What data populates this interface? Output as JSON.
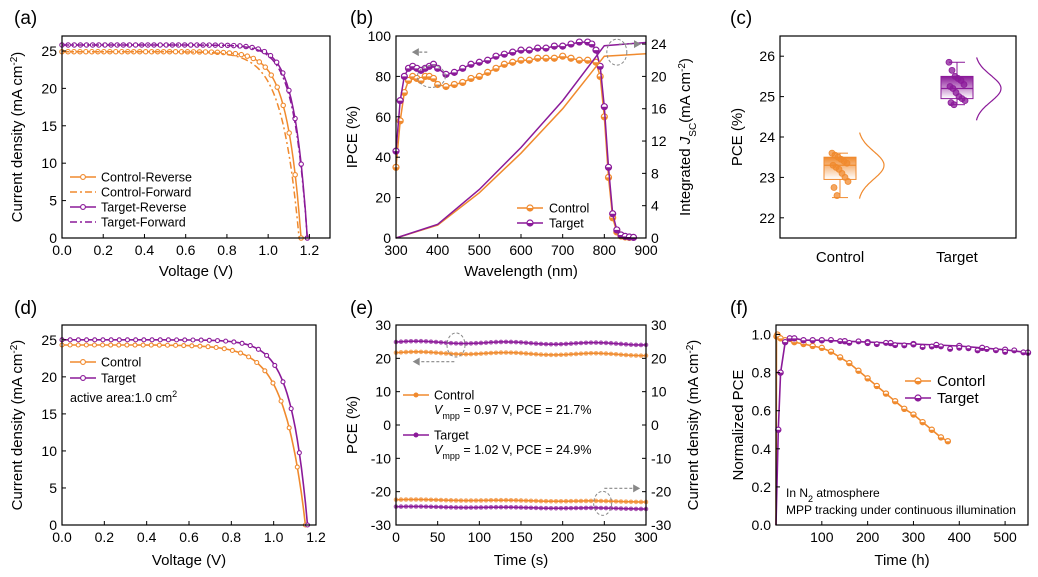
{
  "colors": {
    "control": "#F08A2E",
    "target": "#8B1A99",
    "axis": "#000000",
    "arrow": "#888888"
  },
  "chart_data": [
    {
      "panel": "(a)",
      "type": "line",
      "xlabel": "Voltage (V)",
      "ylabel_main": "Current density (mA cm",
      "ylabel_sup": "-2",
      "ylabel_close": ")",
      "xlim": [
        0,
        1.3
      ],
      "ylim": [
        0,
        27
      ],
      "xticks": [
        "0.0",
        "0.2",
        "0.4",
        "0.6",
        "0.8",
        "1.0",
        "1.2"
      ],
      "yticks": [
        "0",
        "5",
        "10",
        "15",
        "20",
        "25"
      ],
      "series": [
        {
          "name": "Control-Reverse",
          "color": "#F08A2E",
          "dash": "solid",
          "marker": true,
          "jsc": 24.9,
          "voc": 1.16,
          "n": 1.7
        },
        {
          "name": "Control-Forward",
          "color": "#F08A2E",
          "dash": "dashdot",
          "marker": false,
          "jsc": 24.9,
          "voc": 1.15,
          "n": 2.0
        },
        {
          "name": "Target-Reverse",
          "color": "#8B1A99",
          "dash": "solid",
          "marker": true,
          "jsc": 25.8,
          "voc": 1.19,
          "n": 1.5
        },
        {
          "name": "Target-Forward",
          "color": "#8B1A99",
          "dash": "dashdot",
          "marker": false,
          "jsc": 25.8,
          "voc": 1.19,
          "n": 1.6
        }
      ]
    },
    {
      "panel": "(b)",
      "type": "line",
      "xlabel": "Wavelength (nm)",
      "ylabel": "IPCE (%)",
      "y2label_main": "Integrated ",
      "y2label_it": "J",
      "y2label_sub": "SC",
      "y2label_unit": "(mA cm",
      "y2label_sup": "-2",
      "y2label_close": ")",
      "xlim": [
        300,
        900
      ],
      "ylim": [
        0,
        100
      ],
      "y2lim": [
        0,
        25
      ],
      "xticks": [
        "300",
        "400",
        "500",
        "600",
        "700",
        "800",
        "900"
      ],
      "yticks": [
        "0",
        "20",
        "40",
        "60",
        "80",
        "100"
      ],
      "y2ticks": [
        "0",
        "4",
        "8",
        "12",
        "16",
        "20",
        "24"
      ],
      "ipce": [
        {
          "name": "Control",
          "color": "#F08A2E",
          "x": [
            300,
            310,
            320,
            330,
            340,
            350,
            360,
            370,
            380,
            390,
            400,
            420,
            440,
            460,
            480,
            500,
            520,
            540,
            560,
            580,
            600,
            620,
            640,
            660,
            680,
            700,
            720,
            740,
            760,
            780,
            790,
            800,
            810,
            820,
            830,
            840,
            850,
            860
          ],
          "y": [
            35,
            58,
            72,
            78,
            80,
            79,
            78,
            80,
            80,
            79,
            76,
            75,
            76,
            77,
            79,
            80,
            82,
            84,
            86,
            87,
            88,
            88,
            89,
            89,
            89,
            90,
            89,
            88,
            88,
            87,
            80,
            60,
            30,
            10,
            3,
            1,
            0.5,
            0.3
          ]
        },
        {
          "name": "Target",
          "color": "#8B1A99",
          "x": [
            300,
            310,
            320,
            330,
            340,
            350,
            360,
            370,
            380,
            390,
            400,
            420,
            440,
            460,
            480,
            500,
            520,
            540,
            560,
            580,
            600,
            620,
            640,
            660,
            680,
            700,
            720,
            740,
            760,
            770,
            780,
            790,
            800,
            810,
            820,
            830,
            840,
            850,
            860,
            870
          ],
          "y": [
            43,
            68,
            80,
            84,
            85,
            84,
            83,
            84,
            85,
            86,
            84,
            81,
            82,
            84,
            86,
            87,
            88,
            90,
            91,
            92,
            93,
            93,
            94,
            94,
            95,
            95,
            96,
            97,
            97,
            96,
            93,
            85,
            65,
            35,
            12,
            4,
            1.5,
            0.8,
            0.5,
            0.3
          ]
        }
      ],
      "jsc": [
        {
          "name": "Control",
          "color": "#F08A2E",
          "x": [
            300,
            400,
            500,
            600,
            700,
            800,
            900
          ],
          "y": [
            0,
            1.6,
            5.6,
            10.5,
            16.0,
            22.5,
            22.8
          ]
        },
        {
          "name": "Target",
          "color": "#8B1A99",
          "x": [
            300,
            400,
            500,
            600,
            700,
            800,
            900
          ],
          "y": [
            0,
            1.7,
            6.0,
            11.2,
            17.0,
            23.8,
            24.2
          ]
        }
      ]
    },
    {
      "panel": "(c)",
      "type": "box",
      "ylabel": "PCE (%)",
      "ylim": [
        21.5,
        26.5
      ],
      "yticks": [
        "22",
        "23",
        "24",
        "25",
        "26"
      ],
      "categories": [
        "Control",
        "Target"
      ],
      "boxes": [
        {
          "name": "Control",
          "color": "#F08A2E",
          "q1": 22.95,
          "median": 23.3,
          "q3": 23.5,
          "min": 22.5,
          "max": 23.6,
          "points": [
            23.6,
            23.55,
            23.5,
            23.45,
            23.4,
            23.35,
            23.3,
            23.25,
            23.2,
            23.1,
            23.0,
            22.9,
            22.75,
            22.55
          ]
        },
        {
          "name": "Target",
          "color": "#8B1A99",
          "q1": 24.95,
          "median": 25.2,
          "q3": 25.5,
          "min": 24.8,
          "max": 25.85,
          "points": [
            25.85,
            25.65,
            25.5,
            25.45,
            25.4,
            25.3,
            25.25,
            25.2,
            25.1,
            25.0,
            24.95,
            24.9,
            24.85,
            24.8
          ]
        }
      ]
    },
    {
      "panel": "(d)",
      "type": "line",
      "xlabel": "Voltage (V)",
      "ylabel_main": "Current density (mA cm",
      "ylabel_sup": "-2",
      "ylabel_close": ")",
      "xlim": [
        0,
        1.2
      ],
      "ylim": [
        0,
        27
      ],
      "xticks": [
        "0.0",
        "0.2",
        "0.4",
        "0.6",
        "0.8",
        "1.0",
        "1.2"
      ],
      "yticks": [
        "0",
        "5",
        "10",
        "15",
        "20",
        "25"
      ],
      "annotation_main": "active area:1.0 cm",
      "annotation_sup": "2",
      "series": [
        {
          "name": "Control",
          "color": "#F08A2E",
          "jsc": 24.3,
          "voc": 1.15,
          "n": 2.4
        },
        {
          "name": "Target",
          "color": "#8B1A99",
          "jsc": 25.0,
          "voc": 1.16,
          "n": 1.9
        }
      ]
    },
    {
      "panel": "(e)",
      "type": "line",
      "xlabel": "Time (s)",
      "ylabel": "PCE (%)",
      "y2label_main": "Current density (mA cm",
      "y2label_sup": "-2",
      "y2label_close": ")",
      "xlim": [
        0,
        300
      ],
      "ylim": [
        -30,
        30
      ],
      "xticks": [
        "0",
        "50",
        "100",
        "150",
        "200",
        "250",
        "300"
      ],
      "yticks": [
        "-30",
        "-20",
        "-10",
        "0",
        "10",
        "20",
        "30"
      ],
      "y2ticks": [
        "-30",
        "-20",
        "-10",
        "0",
        "10",
        "20",
        "30"
      ],
      "series": [
        {
          "name": "Control",
          "color": "#F08A2E",
          "pce": 21.7,
          "jsc": -22.4,
          "vmpp_label": "V",
          "vmpp_sub": "mpp",
          "detail": " = 0.97 V, PCE = 21.7%"
        },
        {
          "name": "Target",
          "color": "#8B1A99",
          "pce": 24.9,
          "jsc": -24.5,
          "vmpp_label": "V",
          "vmpp_sub": "mpp",
          "detail": " = 1.02 V, PCE = 24.9%"
        }
      ]
    },
    {
      "panel": "(f)",
      "type": "line",
      "xlabel": "Time (h)",
      "ylabel": "Normalized PCE",
      "xlim": [
        0,
        550
      ],
      "ylim": [
        0,
        1.05
      ],
      "xticks": [
        "100",
        "200",
        "300",
        "400",
        "500"
      ],
      "yticks": [
        "0.0",
        "0.2",
        "0.4",
        "0.6",
        "0.8",
        "1.0"
      ],
      "note1_main": "In N",
      "note1_sub": "2",
      "note1_rest": " atmosphere",
      "note2": "MPP tracking under continuous illumination",
      "series": [
        {
          "name": "Contorl",
          "color": "#F08A2E",
          "x": [
            0,
            1,
            3,
            5,
            10,
            20,
            40,
            60,
            80,
            100,
            120,
            140,
            160,
            180,
            200,
            220,
            240,
            260,
            280,
            300,
            320,
            340,
            360,
            375
          ],
          "y": [
            0,
            0.99,
            1.0,
            0.99,
            0.98,
            0.97,
            0.96,
            0.95,
            0.94,
            0.93,
            0.91,
            0.88,
            0.85,
            0.81,
            0.77,
            0.73,
            0.69,
            0.65,
            0.61,
            0.58,
            0.54,
            0.5,
            0.46,
            0.44
          ]
        },
        {
          "name": "Target",
          "color": "#8B1A99",
          "x": [
            0,
            5,
            10,
            20,
            30,
            40,
            60,
            80,
            100,
            150,
            200,
            250,
            300,
            350,
            400,
            450,
            500,
            550
          ],
          "y": [
            0,
            0.5,
            0.8,
            0.96,
            0.98,
            0.98,
            0.97,
            0.97,
            0.97,
            0.965,
            0.96,
            0.955,
            0.95,
            0.945,
            0.94,
            0.93,
            0.92,
            0.905
          ]
        }
      ]
    }
  ]
}
